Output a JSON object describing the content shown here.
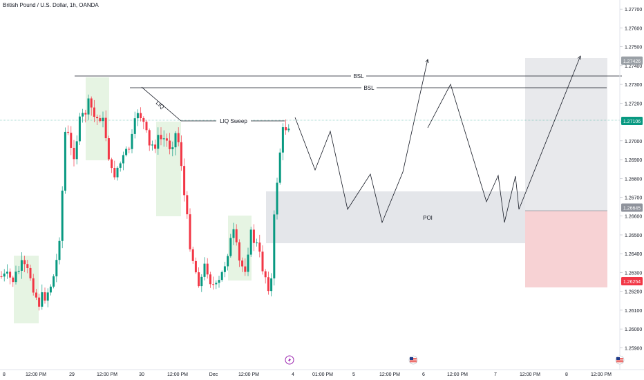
{
  "header": {
    "title": "British Pound / U.S. Dollar, 1h, OANDA"
  },
  "chart_data": {
    "type": "candlestick",
    "ylim": [
      1.2585,
      1.2773
    ],
    "y_ticks": [
      "1.27700",
      "1.27600",
      "1.27500",
      "1.27400",
      "1.27300",
      "1.27200",
      "1.27100",
      "1.27000",
      "1.26900",
      "1.26800",
      "1.26700",
      "1.26600",
      "1.26500",
      "1.26400",
      "1.26300",
      "1.26200",
      "1.26100",
      "1.26000",
      "1.25900"
    ],
    "x_ticks": [
      "8",
      "12:00 PM",
      "29",
      "12:00 PM",
      "30",
      "12:00 PM",
      "Dec",
      "12:00 PM",
      "4",
      "01:00 PM",
      "5",
      "12:00 PM",
      "6",
      "12:00 PM",
      "7",
      "12:00 PM",
      "8",
      "12:00 PM"
    ],
    "price_labels": [
      {
        "text": "1.27426",
        "color": "#9aa0a6",
        "value": 1.27426
      },
      {
        "text": "1.27106",
        "color": "#089981",
        "value": 1.27106
      },
      {
        "text": "1.26645",
        "color": "#8f939c",
        "value": 1.26645
      },
      {
        "text": "1.26254",
        "color": "#f23645",
        "value": 1.26254
      }
    ],
    "annotations": {
      "bsl_label": "BSL",
      "bsl_label_2": "BSL",
      "liq_label": "LIQ",
      "liq_sweep_label": "LIQ Sweep",
      "poi_label": "POI"
    },
    "colors": {
      "up": "#089981",
      "down": "#f23645",
      "highlight": "#e6f4e3",
      "poi": "#e4e6ea",
      "target": "#e8e9ec",
      "stop": "#f7d2d4"
    },
    "icons": [
      "lightning-icon",
      "us-flag-icon",
      "us-flag-icon"
    ]
  }
}
